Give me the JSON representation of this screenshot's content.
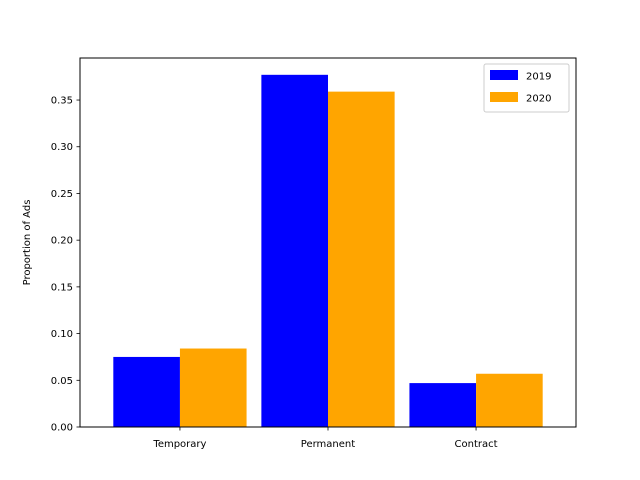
{
  "chart_data": {
    "type": "bar",
    "title": "",
    "xlabel": "",
    "ylabel": "Proportion of Ads",
    "categories": [
      "Temporary",
      "Permanent",
      "Contract"
    ],
    "series": [
      {
        "name": "2019",
        "color": "#0000ff",
        "values": [
          0.075,
          0.377,
          0.047
        ]
      },
      {
        "name": "2020",
        "color": "#ffa500",
        "values": [
          0.084,
          0.359,
          0.057
        ]
      }
    ],
    "ylim": [
      0,
      0.395
    ],
    "yticks": [
      "0.00",
      "0.05",
      "0.10",
      "0.15",
      "0.20",
      "0.25",
      "0.30",
      "0.35"
    ],
    "legend_position": "top-right",
    "grid": false
  }
}
